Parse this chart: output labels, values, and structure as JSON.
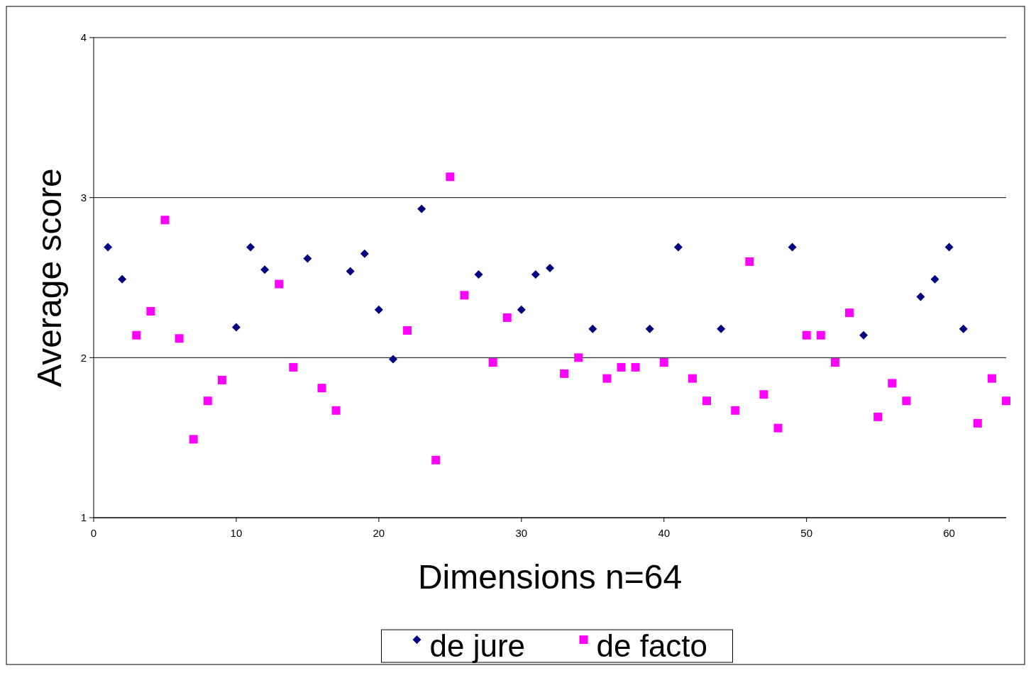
{
  "chart_data": {
    "type": "scatter",
    "xlabel": "Dimensions n=64",
    "ylabel": "Average score",
    "xlim": [
      0,
      64
    ],
    "xticks": [
      0,
      10,
      20,
      30,
      40,
      50,
      60
    ],
    "ylim": [
      1,
      4
    ],
    "yticks": [
      1,
      2,
      3,
      4
    ],
    "grid": "y",
    "legend": "bottom",
    "series": [
      {
        "name": "de jure",
        "color": "#000080",
        "marker": "diamond",
        "x": [
          1,
          2,
          10,
          11,
          12,
          15,
          18,
          19,
          20,
          21,
          23,
          27,
          30,
          31,
          32,
          35,
          39,
          41,
          44,
          49,
          54,
          58,
          59,
          60,
          61
        ],
        "values": [
          2.69,
          2.49,
          2.19,
          2.69,
          2.55,
          2.62,
          2.54,
          2.65,
          2.3,
          1.99,
          2.93,
          2.52,
          2.3,
          2.52,
          2.56,
          2.18,
          2.18,
          2.69,
          2.18,
          2.69,
          2.14,
          2.38,
          2.49,
          2.69,
          2.18
        ]
      },
      {
        "name": "de facto",
        "color": "#ff00ff",
        "marker": "square",
        "x": [
          3,
          4,
          5,
          6,
          7,
          8,
          9,
          13,
          14,
          16,
          17,
          22,
          24,
          25,
          26,
          28,
          29,
          33,
          34,
          36,
          37,
          38,
          40,
          42,
          43,
          45,
          46,
          47,
          48,
          50,
          51,
          52,
          53,
          55,
          56,
          57,
          62,
          63,
          64
        ],
        "values": [
          2.14,
          2.29,
          2.86,
          2.12,
          1.49,
          1.73,
          1.86,
          2.46,
          1.94,
          1.81,
          1.67,
          2.17,
          1.36,
          3.13,
          2.39,
          1.97,
          2.25,
          1.9,
          2.0,
          1.87,
          1.94,
          1.94,
          1.97,
          1.87,
          1.73,
          1.67,
          2.6,
          1.77,
          1.56,
          2.14,
          2.14,
          1.97,
          2.28,
          1.63,
          1.84,
          1.73,
          1.59,
          1.87,
          1.73
        ]
      }
    ]
  }
}
